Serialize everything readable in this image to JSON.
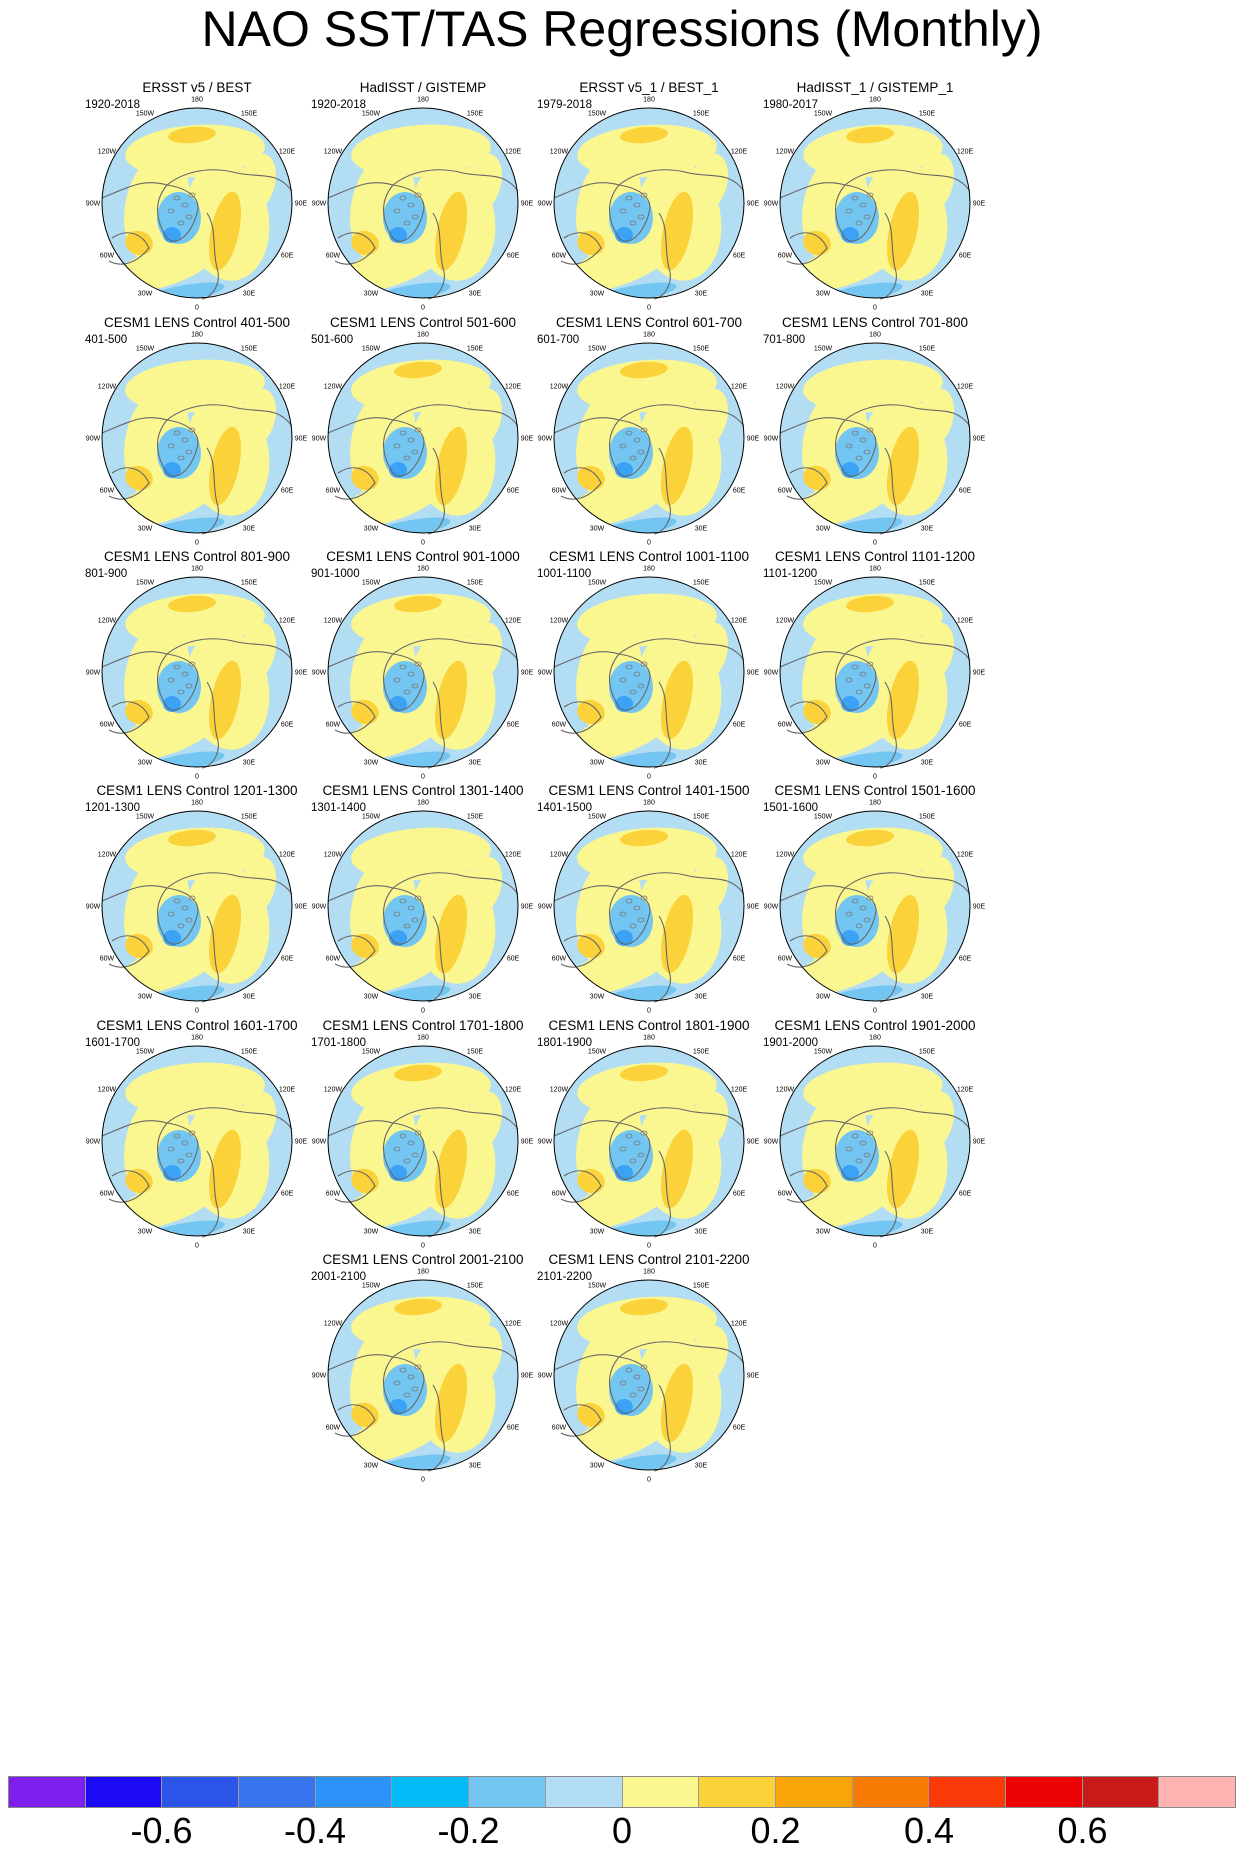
{
  "title": "NAO SST/TAS Regressions (Monthly)",
  "panels": [
    {
      "title": "ERSST v5 / BEST",
      "years": "1920-2018"
    },
    {
      "title": "HadISST / GISTEMP",
      "years": "1920-2018"
    },
    {
      "title": "ERSST v5_1 / BEST_1",
      "years": "1979-2018"
    },
    {
      "title": "HadISST_1 / GISTEMP_1",
      "years": "1980-2017"
    },
    {
      "title": "CESM1 LENS Control 401-500",
      "years": "401-500"
    },
    {
      "title": "CESM1 LENS Control 501-600",
      "years": "501-600"
    },
    {
      "title": "CESM1 LENS Control 601-700",
      "years": "601-700"
    },
    {
      "title": "CESM1 LENS Control 701-800",
      "years": "701-800"
    },
    {
      "title": "CESM1 LENS Control 801-900",
      "years": "801-900"
    },
    {
      "title": "CESM1 LENS Control 901-1000",
      "years": "901-1000"
    },
    {
      "title": "CESM1 LENS Control 1001-1100",
      "years": "1001-1100"
    },
    {
      "title": "CESM1 LENS Control 1101-1200",
      "years": "1101-1200"
    },
    {
      "title": "CESM1 LENS Control 1201-1300",
      "years": "1201-1300"
    },
    {
      "title": "CESM1 LENS Control 1301-1400",
      "years": "1301-1400"
    },
    {
      "title": "CESM1 LENS Control 1401-1500",
      "years": "1401-1500"
    },
    {
      "title": "CESM1 LENS Control 1501-1600",
      "years": "1501-1600"
    },
    {
      "title": "CESM1 LENS Control 1601-1700",
      "years": "1601-1700"
    },
    {
      "title": "CESM1 LENS Control 1701-1800",
      "years": "1701-1800"
    },
    {
      "title": "CESM1 LENS Control 1801-1900",
      "years": "1801-1900"
    },
    {
      "title": "CESM1 LENS Control 1901-2000",
      "years": "1901-2000"
    },
    {
      "title": "CESM1 LENS Control 2001-2100",
      "years": "2001-2100"
    },
    {
      "title": "CESM1 LENS Control 2101-2200",
      "years": "2101-2200"
    }
  ],
  "map_labels": [
    "180",
    "150E",
    "120E",
    "90E",
    "60E",
    "30E",
    "0",
    "30W",
    "60W",
    "90W",
    "120W",
    "150W"
  ],
  "colorbar": {
    "colors": [
      "#7e1ff0",
      "#1c0af5",
      "#2c54e6",
      "#3774ee",
      "#2b93fa",
      "#05bcfb",
      "#74c6f2",
      "#b2ddf3",
      "#faf791",
      "#fbd23a",
      "#f9a509",
      "#f87b06",
      "#fa3a09",
      "#ea0206",
      "#c81b19",
      "#fdb3b0"
    ],
    "ticks": [
      "-0.6",
      "-0.4",
      "-0.2",
      "0",
      "0.2",
      "0.4",
      "0.6"
    ]
  }
}
